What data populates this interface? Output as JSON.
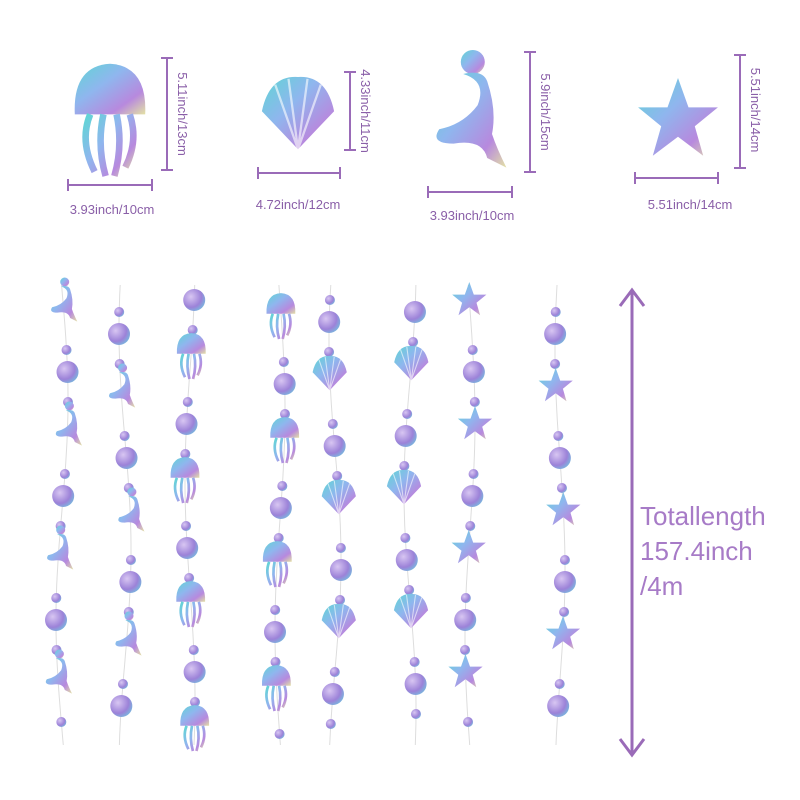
{
  "items": [
    {
      "width": "3.93inch/10cm",
      "height": "5.11inch/13cm"
    },
    {
      "width": "4.72inch/12cm",
      "height": "4.33inch/11cm"
    },
    {
      "width": "3.93inch/10cm",
      "height": "5.9inch/15cm"
    },
    {
      "width": "5.51inch/14cm",
      "height": "5.51inch/14cm"
    }
  ],
  "total": {
    "lines": [
      "Totallength",
      "157.4inch",
      "/4m"
    ]
  }
}
